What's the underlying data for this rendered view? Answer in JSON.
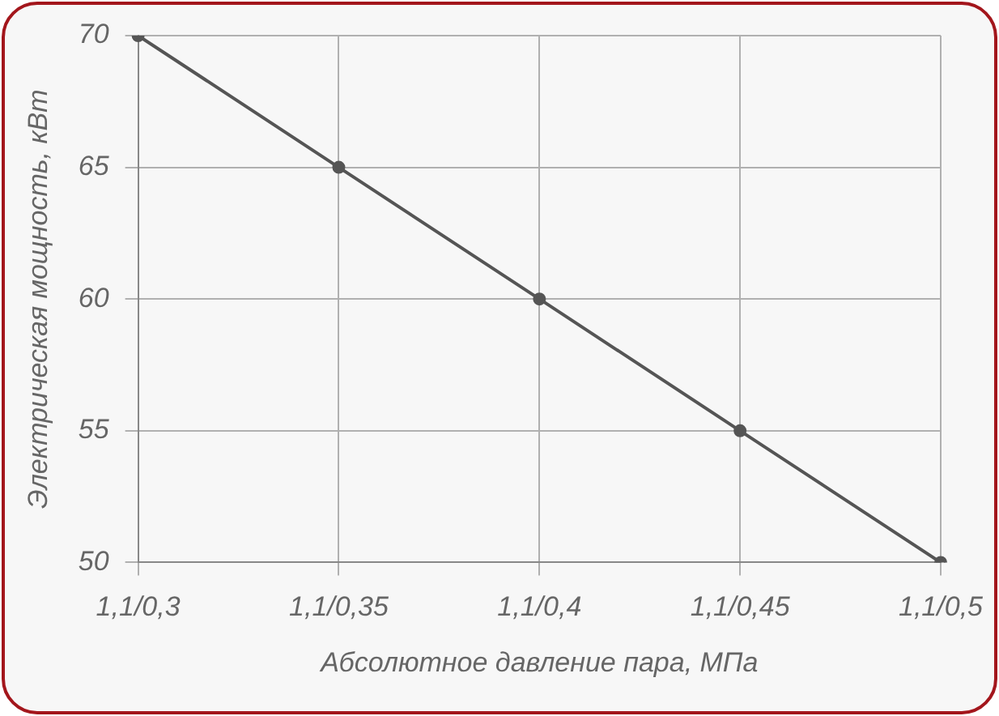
{
  "chart_data": {
    "type": "line",
    "xlabel": "Абсолютное давление пара, МПа",
    "ylabel": "Электрическая мощность, кВт",
    "categories": [
      "1,1/0,3",
      "1,1/0,35",
      "1,1/0,4",
      "1,1/0,45",
      "1,1/0,5"
    ],
    "series": [
      {
        "color": "#555555",
        "values": [
          70,
          65,
          60,
          55,
          50
        ]
      }
    ],
    "ylim": [
      50,
      70
    ],
    "yticks": [
      50,
      55,
      60,
      65,
      70
    ],
    "grid": true,
    "legend": false,
    "marker": "circle",
    "line_style": "solid"
  }
}
